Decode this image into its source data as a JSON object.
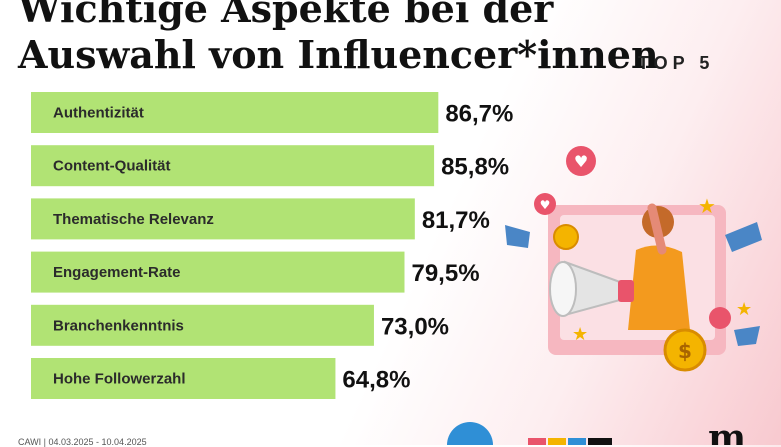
{
  "header": {
    "title": "Wichtige Aspekte bei der Auswahl von Influencer*innen",
    "subtitle": "TOP 5"
  },
  "footer": {
    "source": "CAWI | 04.03.2025 - 10.04.2025"
  },
  "colors": {
    "bar": "#b1e374",
    "accent_pink": "#e9546b",
    "accent_orange": "#f39a1e"
  },
  "illustration": {
    "name": "influencer-megaphone-illustration"
  },
  "chart_data": {
    "type": "bar",
    "orientation": "horizontal",
    "title": "Wichtige Aspekte bei der Auswahl von Influencer*innen",
    "subtitle": "TOP 5",
    "xlim": [
      0,
      100
    ],
    "unit": "%",
    "categories": [
      "Authentizität",
      "Content-Qualität",
      "Thematische Relevanz",
      "Engagement-Rate",
      "Branchenkenntnis",
      "Hohe Followerzahl"
    ],
    "values": [
      86.7,
      85.8,
      81.7,
      79.5,
      73.0,
      64.8
    ],
    "value_labels": [
      "86,7%",
      "85,8%",
      "81,7%",
      "79,5%",
      "73,0%",
      "64,8%"
    ]
  }
}
